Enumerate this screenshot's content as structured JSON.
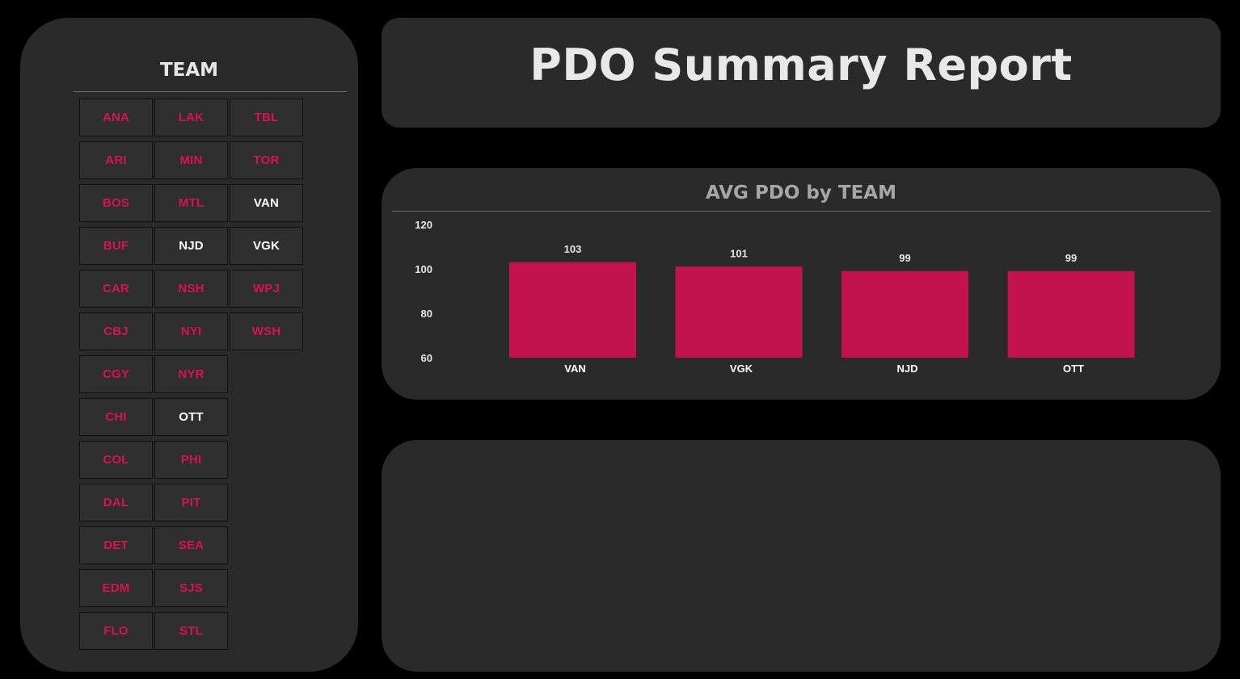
{
  "slicer": {
    "title": "TEAM",
    "teams": [
      {
        "code": "ANA",
        "selected": false
      },
      {
        "code": "LAK",
        "selected": false
      },
      {
        "code": "TBL",
        "selected": false
      },
      {
        "code": "ARI",
        "selected": false
      },
      {
        "code": "MIN",
        "selected": false
      },
      {
        "code": "TOR",
        "selected": false
      },
      {
        "code": "BOS",
        "selected": false
      },
      {
        "code": "MTL",
        "selected": false
      },
      {
        "code": "VAN",
        "selected": true
      },
      {
        "code": "BUF",
        "selected": false
      },
      {
        "code": "NJD",
        "selected": true
      },
      {
        "code": "VGK",
        "selected": true
      },
      {
        "code": "CAR",
        "selected": false
      },
      {
        "code": "NSH",
        "selected": false
      },
      {
        "code": "WPJ",
        "selected": false
      },
      {
        "code": "CBJ",
        "selected": false
      },
      {
        "code": "NYI",
        "selected": false
      },
      {
        "code": "WSH",
        "selected": false
      },
      {
        "code": "CGY",
        "selected": false
      },
      {
        "code": "NYR",
        "selected": false
      },
      {
        "code": "CHI",
        "selected": false
      },
      {
        "code": "OTT",
        "selected": true
      },
      {
        "code": "COL",
        "selected": false
      },
      {
        "code": "PHI",
        "selected": false
      },
      {
        "code": "DAL",
        "selected": false
      },
      {
        "code": "PIT",
        "selected": false
      },
      {
        "code": "DET",
        "selected": false
      },
      {
        "code": "SEA",
        "selected": false
      },
      {
        "code": "EDM",
        "selected": false
      },
      {
        "code": "SJS",
        "selected": false
      },
      {
        "code": "FLO",
        "selected": false
      },
      {
        "code": "STL",
        "selected": false
      }
    ]
  },
  "header": {
    "title": "PDO Summary Report"
  },
  "colors": {
    "background": "#000000",
    "panel": "#2a2a2a",
    "accent": "#c2134f",
    "unselected_text": "#d9134f",
    "selected_text": "#ffffff"
  },
  "chart_data": {
    "type": "bar",
    "title": "AVG PDO by TEAM",
    "categories": [
      "VAN",
      "VGK",
      "NJD",
      "OTT"
    ],
    "values": [
      103,
      101,
      99,
      99
    ],
    "data_labels": [
      "103",
      "101",
      "99",
      "99"
    ],
    "y_ticks": [
      "120",
      "100",
      "80",
      "60"
    ],
    "ylim": [
      60,
      120
    ],
    "xlabel": "",
    "ylabel": "",
    "grid": false,
    "bar_color": "#c2134f"
  }
}
